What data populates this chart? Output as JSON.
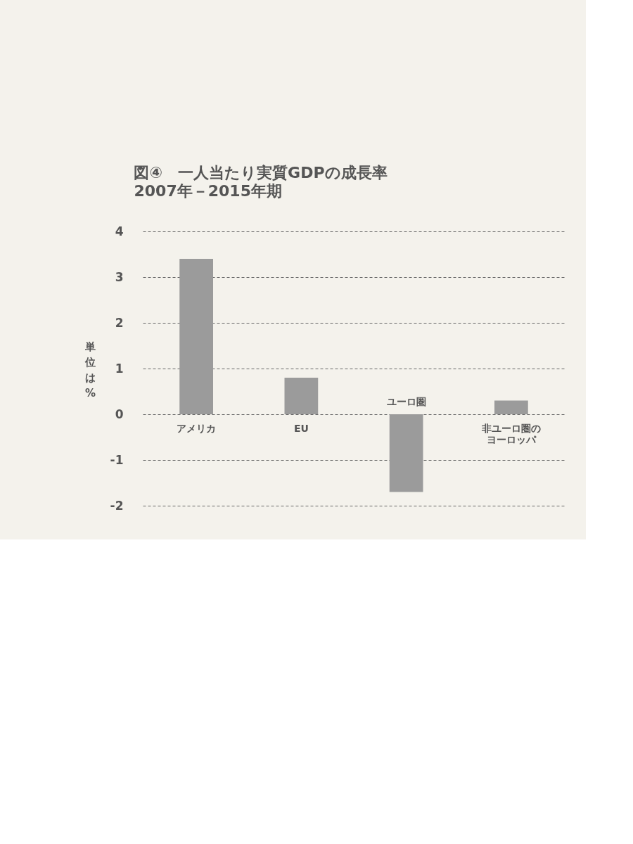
{
  "chart_data": {
    "type": "bar",
    "title": "図④　一人当たり実質GDPの成長率",
    "subtitle": "2007年－2015年期",
    "ylabel": "単位は%",
    "categories": [
      "アメリカ",
      "EU",
      "ユーロ圏",
      "非ユーロ圏のヨーロッパ"
    ],
    "values": [
      3.4,
      0.8,
      -1.7,
      0.3
    ],
    "color": "#9b9b9b",
    "ylim": [
      -2,
      4
    ],
    "yticks": [
      -2,
      -1,
      0,
      1,
      2,
      3,
      4
    ],
    "grid": "y"
  }
}
